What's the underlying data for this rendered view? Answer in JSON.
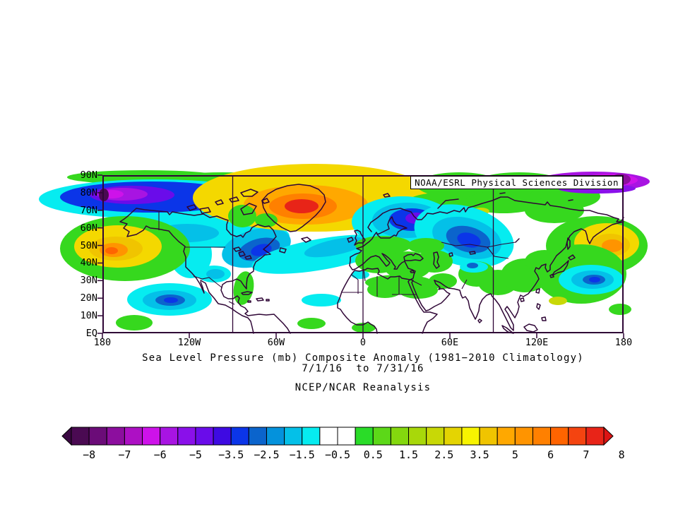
{
  "map": {
    "credit": "NOAA/ESRL Physical Sciences Division",
    "border_color": "#2F0636",
    "grid_meridians": [
      "90W",
      "0",
      "90E"
    ]
  },
  "titles": {
    "line1": "Sea Level Pressure (mb) Composite Anomaly (1981−2010 Climatology)",
    "line2": "7/1/16  to 7/31/16",
    "line3": "NCEP/NCAR Reanalysis"
  },
  "axes": {
    "y_labels": [
      "90N",
      "80N",
      "70N",
      "60N",
      "50N",
      "40N",
      "30N",
      "20N",
      "10N",
      "EQ"
    ],
    "x_labels": [
      "180",
      "120W",
      "60W",
      "0",
      "60E",
      "120E",
      "180"
    ]
  },
  "colorbar": {
    "labels": [
      "−8",
      "−7",
      "−6",
      "−5",
      "−3.5",
      "−2.5",
      "−1.5",
      "−0.5",
      "0.5",
      "1.5",
      "2.5",
      "3.5",
      "5",
      "6",
      "7",
      "8"
    ],
    "segment_colors": [
      "#4A0A52",
      "#6B0C78",
      "#8C0E9E",
      "#AD10C4",
      "#CE12EA",
      "#A814E2",
      "#8A10EA",
      "#6A0CEA",
      "#3E0AE2",
      "#0B35E8",
      "#0B64CC",
      "#0492DC",
      "#04C0E8",
      "#06ECF0",
      "#FFFFFF",
      "#FFFFFF",
      "#2ADC28",
      "#5CD818",
      "#84D80E",
      "#A8D80A",
      "#C8D806",
      "#E4D402",
      "#F8F400",
      "#F0C400",
      "#FFA800",
      "#FF9400",
      "#FF8000",
      "#FF6400",
      "#F44410",
      "#E82418"
    ],
    "left_arrow_color": "#3A0842",
    "right_arrow_color": "#DC1414",
    "outline_color": "#000000"
  },
  "chart_data": {
    "type": "heatmap",
    "subtype": "filled-contour-anomaly-map",
    "title": "Sea Level Pressure (mb) Composite Anomaly (1981−2010 Climatology)",
    "period": "7/1/16 to 7/31/16",
    "dataset": "NCEP/NCAR Reanalysis",
    "credit": "NOAA/ESRL Physical Sciences Division",
    "units": "mb",
    "lat_range": [
      "EQ",
      "90N"
    ],
    "lon_range": [
      "180",
      "180"
    ],
    "x_ticks": [
      "180",
      "120W",
      "60W",
      "0",
      "60E",
      "120E",
      "180"
    ],
    "y_ticks": [
      "EQ",
      "10N",
      "20N",
      "30N",
      "40N",
      "50N",
      "60N",
      "70N",
      "80N",
      "90N"
    ],
    "contour_levels": [
      -8,
      -7,
      -6,
      -5,
      -3.5,
      -2.5,
      -1.5,
      -0.5,
      0.5,
      1.5,
      2.5,
      3.5,
      5,
      6,
      7,
      8
    ],
    "legend_position": "bottom",
    "grid": "meridians at 90W, 0, 90E",
    "anomaly_centers": [
      {
        "region": "Greenland",
        "lat": "72N",
        "lon": "40W",
        "value_mb": 7.5,
        "sign": "positive"
      },
      {
        "region": "Arctic near dateline",
        "lat": "84N",
        "lon": "165W",
        "value_mb": -6,
        "sign": "negative"
      },
      {
        "region": "Arctic 150E-180",
        "lat": "88N",
        "lon": "160E",
        "value_mb": -6.5,
        "sign": "negative"
      },
      {
        "region": "NE Canada / Labrador",
        "lat": "50N",
        "lon": "70W",
        "value_mb": -2.5,
        "sign": "negative"
      },
      {
        "region": "Scandinavia",
        "lat": "65N",
        "lon": "30E",
        "value_mb": -3.5,
        "sign": "negative"
      },
      {
        "region": "Central Siberia",
        "lat": "52N",
        "lon": "72E",
        "value_mb": -3,
        "sign": "negative"
      },
      {
        "region": "North Pacific near dateline",
        "lat": "48N",
        "lon": "178W",
        "value_mb": 4.5,
        "sign": "positive"
      },
      {
        "region": "NE Asia / Kamchatka east",
        "lat": "50N",
        "lon": "172E",
        "value_mb": 4,
        "sign": "positive"
      },
      {
        "region": "Subtropical central Pacific",
        "lat": "19N",
        "lon": "155W",
        "value_mb": -2,
        "sign": "negative"
      },
      {
        "region": "Western Pacific",
        "lat": "30N",
        "lon": "160E",
        "value_mb": -2.5,
        "sign": "negative"
      },
      {
        "region": "Canada / Gulf of Alaska belt",
        "lat": "58N",
        "lon": "120W",
        "value_mb": -1.5,
        "sign": "negative"
      },
      {
        "region": "North Africa / Middle East",
        "lat": "20N",
        "lon": "20E",
        "value_mb": 1,
        "sign": "positive"
      },
      {
        "region": "Central Europe",
        "lat": "48N",
        "lon": "10E",
        "value_mb": 1,
        "sign": "positive"
      }
    ]
  }
}
